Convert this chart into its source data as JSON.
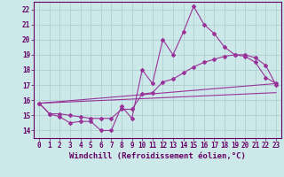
{
  "title": "",
  "xlabel": "Windchill (Refroidissement éolien,°C)",
  "ylabel": "",
  "background_color": "#cce8e8",
  "grid_color": "#aacccc",
  "line_color": "#993399",
  "xlim": [
    -0.5,
    23.5
  ],
  "ylim": [
    13.5,
    22.5
  ],
  "yticks": [
    14,
    15,
    16,
    17,
    18,
    19,
    20,
    21,
    22
  ],
  "xticks": [
    0,
    1,
    2,
    3,
    4,
    5,
    6,
    7,
    8,
    9,
    10,
    11,
    12,
    13,
    14,
    15,
    16,
    17,
    18,
    19,
    20,
    21,
    22,
    23
  ],
  "series1_x": [
    0,
    1,
    2,
    3,
    4,
    5,
    6,
    7,
    8,
    9,
    10,
    11,
    12,
    13,
    14,
    15,
    16,
    17,
    18,
    19,
    20,
    21,
    22,
    23
  ],
  "series1_y": [
    15.8,
    15.1,
    14.9,
    14.5,
    14.6,
    14.6,
    14.0,
    14.0,
    15.6,
    14.8,
    18.0,
    17.1,
    20.0,
    19.0,
    20.5,
    22.2,
    21.0,
    20.4,
    19.5,
    19.0,
    18.9,
    18.5,
    17.5,
    17.1
  ],
  "series2_x": [
    0,
    1,
    2,
    3,
    4,
    5,
    6,
    7,
    8,
    9,
    10,
    11,
    12,
    13,
    14,
    15,
    16,
    17,
    18,
    19,
    20,
    21,
    22,
    23
  ],
  "series2_y": [
    15.8,
    15.1,
    15.1,
    15.0,
    14.9,
    14.8,
    14.8,
    14.8,
    15.4,
    15.4,
    16.4,
    16.5,
    17.2,
    17.4,
    17.8,
    18.2,
    18.5,
    18.7,
    18.9,
    19.0,
    19.0,
    18.8,
    18.3,
    17.0
  ],
  "series3_x": [
    0,
    23
  ],
  "series3_y": [
    15.8,
    17.1
  ],
  "series4_x": [
    0,
    23
  ],
  "series4_y": [
    15.8,
    16.5
  ],
  "marker": "D",
  "marker_size": 2.0,
  "line_width": 0.8,
  "font_family": "monospace",
  "tick_fontsize": 5.5,
  "label_fontsize": 6.5
}
